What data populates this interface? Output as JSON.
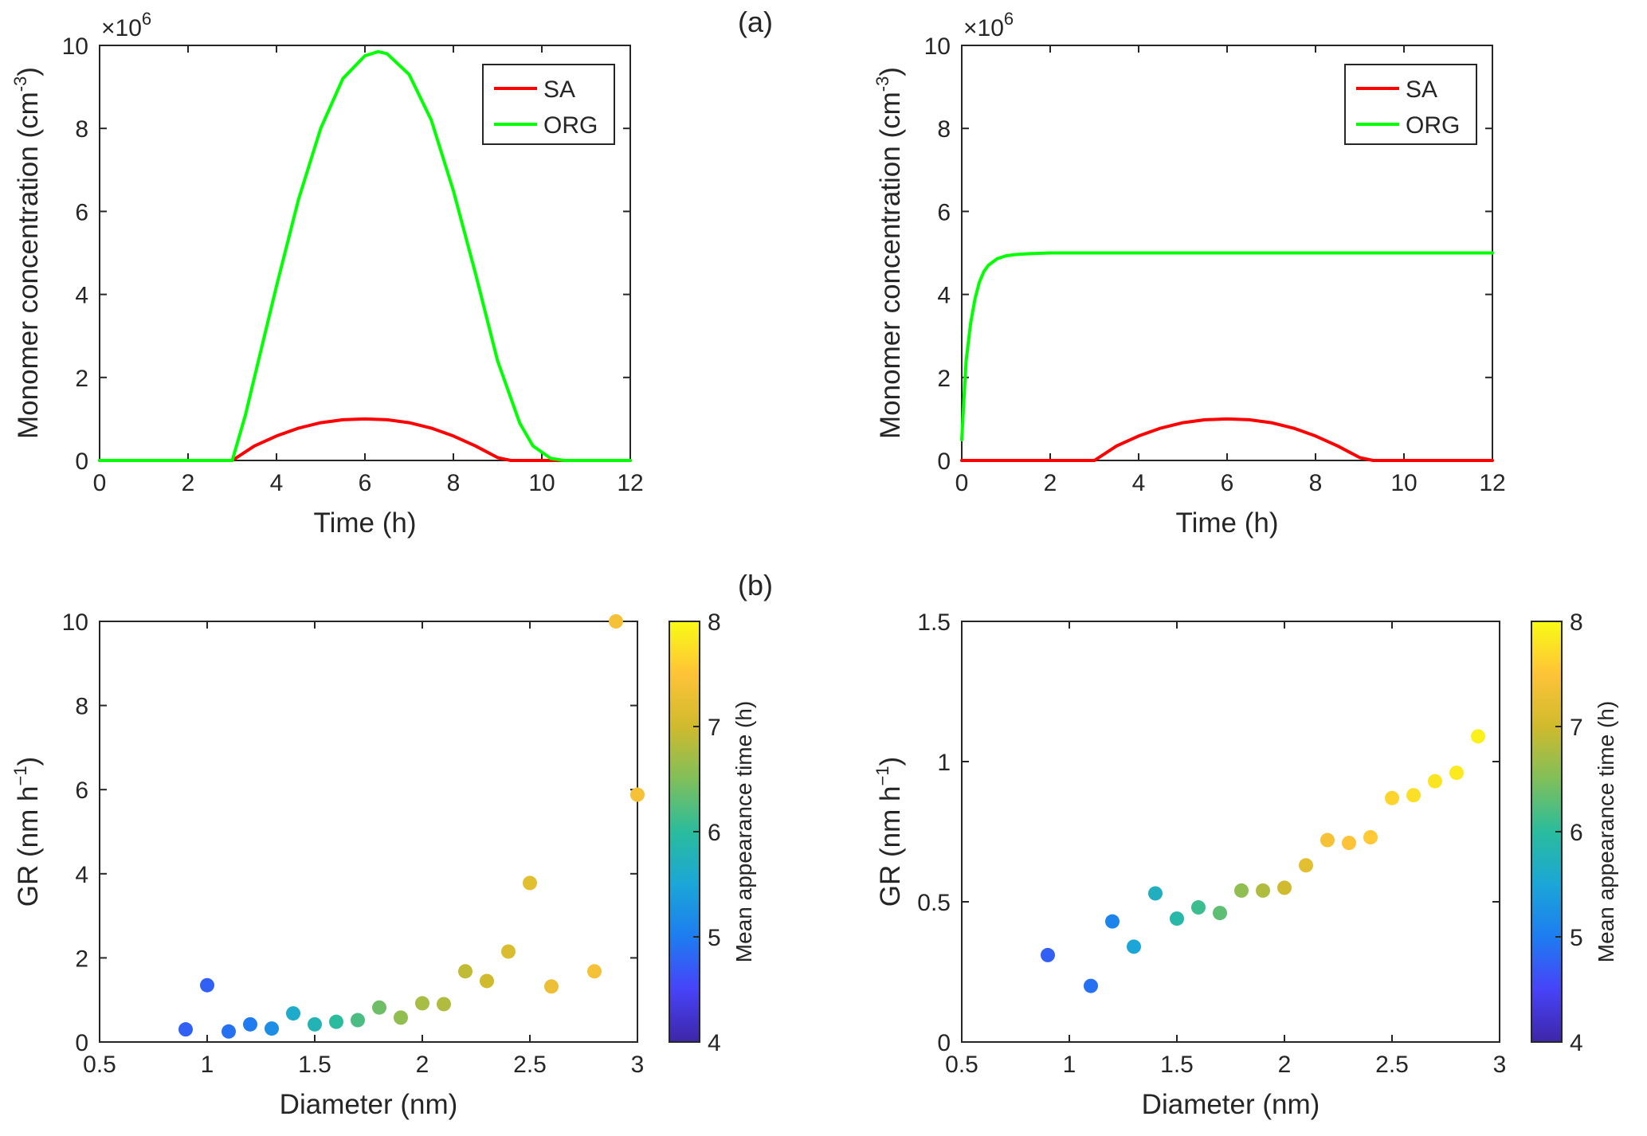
{
  "panel_labels": {
    "a": "(a)",
    "b": "(b)"
  },
  "colormap": [
    "#3e26a8",
    "#4743f8",
    "#1e7cf0",
    "#1ba6d7",
    "#2abc9c",
    "#80bf5a",
    "#d0ba2d",
    "#fec338",
    "#f9fb15"
  ],
  "chart_data": [
    {
      "id": "a-left",
      "type": "line",
      "xlabel": "Time (h)",
      "ylabel": "Monomer concentration (cm",
      "ylabel_sup": "-3",
      "ylabel_close": ")",
      "multiplier": "×10",
      "multiplier_sup": "6",
      "xlim": [
        0,
        12
      ],
      "ylim": [
        0,
        10
      ],
      "xticks": [
        0,
        2,
        4,
        6,
        8,
        10,
        12
      ],
      "yticks": [
        0,
        2,
        4,
        6,
        8,
        10
      ],
      "legend_position": "top-right",
      "series": [
        {
          "name": "SA",
          "color": "#ff0000",
          "x": [
            0,
            3,
            3.5,
            4,
            4.5,
            5,
            5.5,
            6,
            6.5,
            7,
            7.5,
            8,
            8.5,
            9,
            9.3,
            12
          ],
          "y": [
            0,
            0,
            0.35,
            0.59,
            0.78,
            0.91,
            0.98,
            1.0,
            0.98,
            0.91,
            0.78,
            0.59,
            0.35,
            0.07,
            0,
            0
          ]
        },
        {
          "name": "ORG",
          "color": "#00ff00",
          "x": [
            0,
            3.0,
            3.3,
            3.5,
            4,
            4.5,
            5,
            5.5,
            6,
            6.3,
            6.5,
            7,
            7.5,
            8,
            8.5,
            9,
            9.5,
            9.8,
            10.2,
            10.5,
            12
          ],
          "y": [
            0,
            0,
            1.1,
            2.0,
            4.2,
            6.3,
            8.0,
            9.2,
            9.75,
            9.85,
            9.8,
            9.3,
            8.2,
            6.5,
            4.5,
            2.4,
            0.9,
            0.35,
            0.05,
            0,
            0
          ]
        }
      ]
    },
    {
      "id": "a-right",
      "type": "line",
      "xlabel": "Time (h)",
      "ylabel": "Monomer concentration (cm",
      "ylabel_sup": "-3",
      "ylabel_close": ")",
      "multiplier": "×10",
      "multiplier_sup": "6",
      "xlim": [
        0,
        12
      ],
      "ylim": [
        0,
        10
      ],
      "xticks": [
        0,
        2,
        4,
        6,
        8,
        10,
        12
      ],
      "yticks": [
        0,
        2,
        4,
        6,
        8,
        10
      ],
      "legend_position": "top-right",
      "series": [
        {
          "name": "SA",
          "color": "#ff0000",
          "x": [
            0,
            3,
            3.5,
            4,
            4.5,
            5,
            5.5,
            6,
            6.5,
            7,
            7.5,
            8,
            8.5,
            9,
            9.3,
            12
          ],
          "y": [
            0,
            0,
            0.35,
            0.59,
            0.78,
            0.91,
            0.98,
            1.0,
            0.98,
            0.91,
            0.78,
            0.59,
            0.35,
            0.07,
            0,
            0
          ]
        },
        {
          "name": "ORG",
          "color": "#00ff00",
          "x": [
            0,
            0.05,
            0.1,
            0.2,
            0.3,
            0.4,
            0.5,
            0.6,
            0.8,
            1.0,
            1.2,
            1.5,
            2,
            12
          ],
          "y": [
            0.5,
            1.5,
            2.4,
            3.3,
            3.9,
            4.3,
            4.55,
            4.7,
            4.86,
            4.93,
            4.96,
            4.98,
            5.0,
            5.0
          ]
        }
      ]
    },
    {
      "id": "b-left",
      "type": "scatter",
      "xlabel": "Diameter (nm)",
      "ylabel": "GR (nm h",
      "ylabel_sup": "−1",
      "ylabel_close": ")",
      "xlim": [
        0.5,
        3
      ],
      "ylim": [
        0,
        10
      ],
      "xticks": [
        0.5,
        1,
        1.5,
        2,
        2.5,
        3
      ],
      "yticks": [
        0,
        2,
        4,
        6,
        8,
        10
      ],
      "colorbar": {
        "label": "Mean appearance time (h)",
        "range": [
          4,
          8
        ],
        "ticks": [
          4,
          5,
          6,
          7,
          8
        ]
      },
      "points": [
        {
          "x": 0.9,
          "y": 0.3,
          "c": 4.75
        },
        {
          "x": 1.0,
          "y": 1.35,
          "c": 4.75
        },
        {
          "x": 1.1,
          "y": 0.25,
          "c": 4.9
        },
        {
          "x": 1.2,
          "y": 0.42,
          "c": 5.0
        },
        {
          "x": 1.3,
          "y": 0.32,
          "c": 5.2
        },
        {
          "x": 1.4,
          "y": 0.68,
          "c": 5.6
        },
        {
          "x": 1.5,
          "y": 0.42,
          "c": 5.8
        },
        {
          "x": 1.6,
          "y": 0.48,
          "c": 6.0
        },
        {
          "x": 1.7,
          "y": 0.52,
          "c": 6.2
        },
        {
          "x": 1.8,
          "y": 0.82,
          "c": 6.4
        },
        {
          "x": 1.9,
          "y": 0.58,
          "c": 6.6
        },
        {
          "x": 2.0,
          "y": 0.92,
          "c": 6.75
        },
        {
          "x": 2.1,
          "y": 0.9,
          "c": 6.8
        },
        {
          "x": 2.2,
          "y": 1.68,
          "c": 6.9
        },
        {
          "x": 2.3,
          "y": 1.45,
          "c": 7.0
        },
        {
          "x": 2.4,
          "y": 2.15,
          "c": 7.1
        },
        {
          "x": 2.5,
          "y": 3.78,
          "c": 7.2
        },
        {
          "x": 2.6,
          "y": 1.32,
          "c": 7.3
        },
        {
          "x": 2.8,
          "y": 1.68,
          "c": 7.4
        },
        {
          "x": 2.9,
          "y": 10.0,
          "c": 7.4
        },
        {
          "x": 3.0,
          "y": 5.88,
          "c": 7.4
        }
      ]
    },
    {
      "id": "b-right",
      "type": "scatter",
      "xlabel": "Diameter (nm)",
      "ylabel": "GR (nm h",
      "ylabel_sup": "−1",
      "ylabel_close": ")",
      "xlim": [
        0.5,
        3
      ],
      "ylim": [
        0,
        1.5
      ],
      "xticks": [
        0.5,
        1,
        1.5,
        2,
        2.5,
        3
      ],
      "yticks": [
        0,
        0.5,
        1,
        1.5
      ],
      "colorbar": {
        "label": "Mean appearance time (h)",
        "range": [
          4,
          8
        ],
        "ticks": [
          4,
          5,
          6,
          7,
          8
        ]
      },
      "points": [
        {
          "x": 0.9,
          "y": 0.31,
          "c": 4.75
        },
        {
          "x": 1.1,
          "y": 0.2,
          "c": 4.9
        },
        {
          "x": 1.2,
          "y": 0.43,
          "c": 5.1
        },
        {
          "x": 1.3,
          "y": 0.34,
          "c": 5.5
        },
        {
          "x": 1.4,
          "y": 0.53,
          "c": 5.7
        },
        {
          "x": 1.5,
          "y": 0.44,
          "c": 5.9
        },
        {
          "x": 1.6,
          "y": 0.48,
          "c": 6.1
        },
        {
          "x": 1.7,
          "y": 0.46,
          "c": 6.3
        },
        {
          "x": 1.8,
          "y": 0.54,
          "c": 6.6
        },
        {
          "x": 1.9,
          "y": 0.54,
          "c": 6.8
        },
        {
          "x": 2.0,
          "y": 0.55,
          "c": 7.0
        },
        {
          "x": 2.1,
          "y": 0.63,
          "c": 7.2
        },
        {
          "x": 2.2,
          "y": 0.72,
          "c": 7.4
        },
        {
          "x": 2.3,
          "y": 0.71,
          "c": 7.5
        },
        {
          "x": 2.4,
          "y": 0.73,
          "c": 7.55
        },
        {
          "x": 2.5,
          "y": 0.87,
          "c": 7.65
        },
        {
          "x": 2.6,
          "y": 0.88,
          "c": 7.75
        },
        {
          "x": 2.7,
          "y": 0.93,
          "c": 7.8
        },
        {
          "x": 2.8,
          "y": 0.96,
          "c": 7.85
        },
        {
          "x": 2.9,
          "y": 1.09,
          "c": 7.9
        }
      ]
    }
  ]
}
